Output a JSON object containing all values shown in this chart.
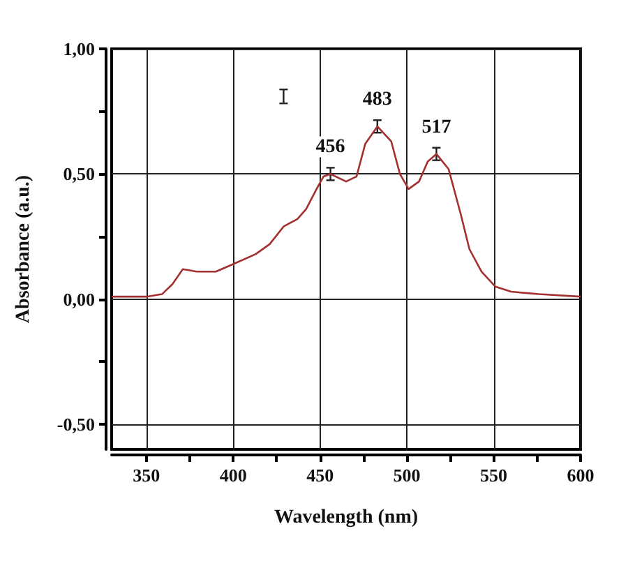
{
  "chart_data": {
    "type": "line",
    "xlabel": "Wavelength (nm)",
    "ylabel": "Absorbance (a.u.)",
    "x": [
      330,
      350,
      359,
      365,
      371,
      379,
      390,
      400,
      413,
      421,
      429,
      437,
      442,
      448,
      452,
      456,
      465,
      471,
      476,
      483,
      491,
      496,
      501,
      507,
      512,
      517,
      524,
      531,
      536,
      543,
      551,
      560,
      576,
      600
    ],
    "series": [
      {
        "color": "#a3302f",
        "values": [
          0.01,
          0.01,
          0.02,
          0.06,
          0.12,
          0.11,
          0.11,
          0.14,
          0.18,
          0.22,
          0.29,
          0.32,
          0.36,
          0.44,
          0.49,
          0.5,
          0.47,
          0.49,
          0.62,
          0.69,
          0.63,
          0.5,
          0.44,
          0.47,
          0.55,
          0.58,
          0.52,
          0.34,
          0.2,
          0.11,
          0.05,
          0.03,
          0.02,
          0.01
        ],
        "errors": [
          null,
          null,
          null,
          null,
          null,
          null,
          null,
          null,
          null,
          null,
          null,
          null,
          null,
          null,
          null,
          0.025,
          null,
          null,
          null,
          0.025,
          null,
          null,
          null,
          null,
          null,
          0.025,
          null,
          null,
          null,
          null,
          null,
          null,
          null,
          null
        ]
      }
    ],
    "xlim": [
      330,
      600
    ],
    "xticks": [
      350,
      {
        "value": 375,
        "label": null
      },
      400,
      {
        "value": 425,
        "label": null
      },
      450,
      {
        "value": 475,
        "label": null
      },
      500,
      {
        "value": 525,
        "label": null
      },
      550,
      {
        "value": 575,
        "label": null
      },
      600
    ],
    "ylim": [
      -0.6,
      1.0
    ],
    "yticks": [
      {
        "value": -0.5,
        "label": "-0,50"
      },
      {
        "value": -0.25,
        "label": null
      },
      {
        "value": 0,
        "label": "0,00"
      },
      {
        "value": 0.25,
        "label": null
      },
      {
        "value": 0.5,
        "label": "0,50"
      },
      {
        "value": 0.75,
        "label": null
      },
      {
        "value": 1.0,
        "label": "1,00"
      }
    ],
    "annotations": [
      {
        "text": "456",
        "x": 456,
        "y": 0.5
      },
      {
        "text": "483",
        "x": 483,
        "y": 0.69
      },
      {
        "text": "517",
        "x": 517,
        "y": 0.58
      }
    ],
    "grid": true,
    "marker": "none",
    "line_style": "solid"
  }
}
